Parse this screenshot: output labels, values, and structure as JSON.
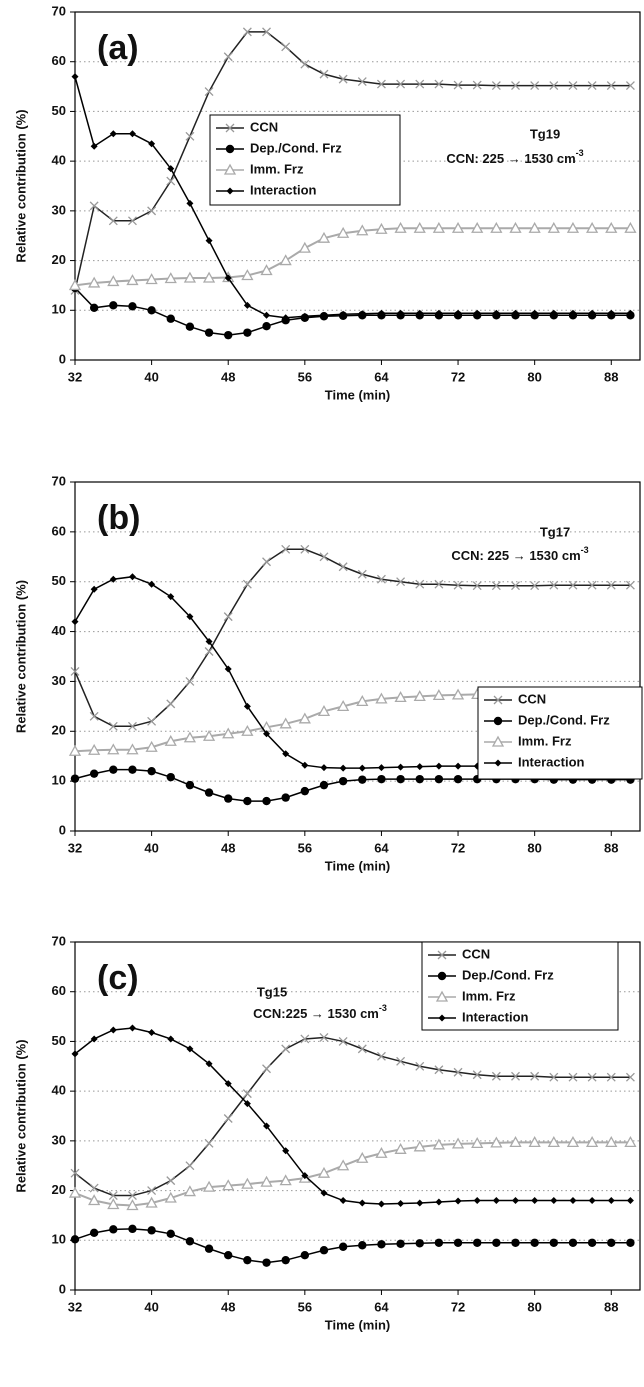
{
  "chart_data": [
    {
      "type": "line",
      "panel_label": "(a)",
      "annotation": {
        "name": "Tg19",
        "text": "CCN: 225 → 1530 cm",
        "superscript": "-3"
      },
      "xlabel": "Time (min)",
      "ylabel": "Relative contribution (%)",
      "xlim": [
        32,
        91
      ],
      "ylim": [
        0,
        70
      ],
      "xticks": [
        32,
        40,
        48,
        56,
        64,
        72,
        80,
        88
      ],
      "yticks": [
        0,
        10,
        20,
        30,
        40,
        50,
        60,
        70
      ],
      "grid": true,
      "legend": "upper-middle",
      "x": [
        32,
        34,
        36,
        38,
        40,
        42,
        44,
        46,
        48,
        50,
        52,
        54,
        56,
        58,
        60,
        62,
        64,
        66,
        68,
        70,
        72,
        74,
        76,
        78,
        80,
        82,
        84,
        86,
        88,
        90
      ],
      "series": [
        {
          "name": "CCN",
          "color": "#222222",
          "marker": "x",
          "values": [
            14,
            31,
            28,
            28,
            30,
            36,
            45,
            54,
            61,
            66,
            66,
            63,
            59.5,
            57.5,
            56.5,
            56,
            55.5,
            55.5,
            55.5,
            55.5,
            55.3,
            55.3,
            55.2,
            55.2,
            55.2,
            55.2,
            55.2,
            55.2,
            55.2,
            55.2
          ]
        },
        {
          "name": "Dep./Cond. Frz",
          "color": "#000000",
          "marker": "circle",
          "values": [
            14.5,
            10.5,
            11,
            10.8,
            10,
            8.3,
            6.7,
            5.5,
            5,
            5.5,
            6.8,
            8,
            8.5,
            8.8,
            8.9,
            9,
            9,
            9,
            9,
            9,
            9,
            9,
            9,
            9,
            9,
            9,
            9,
            9,
            9,
            9
          ]
        },
        {
          "name": "Imm. Frz",
          "color": "#aaaaaa",
          "marker": "triangle",
          "values": [
            15,
            15.5,
            15.8,
            16,
            16.2,
            16.4,
            16.5,
            16.5,
            16.6,
            17,
            18,
            20,
            22.5,
            24.5,
            25.5,
            26,
            26.3,
            26.5,
            26.5,
            26.5,
            26.5,
            26.5,
            26.5,
            26.5,
            26.5,
            26.5,
            26.5,
            26.5,
            26.5,
            26.5
          ]
        },
        {
          "name": "Interaction",
          "color": "#000000",
          "marker": "diamond",
          "values": [
            57,
            43,
            45.5,
            45.5,
            43.5,
            38.5,
            31.5,
            24,
            16.5,
            11,
            9,
            8.5,
            8.8,
            9,
            9.2,
            9.3,
            9.4,
            9.4,
            9.4,
            9.4,
            9.4,
            9.4,
            9.4,
            9.4,
            9.4,
            9.4,
            9.4,
            9.4,
            9.4,
            9.4
          ]
        }
      ]
    },
    {
      "type": "line",
      "panel_label": "(b)",
      "annotation": {
        "name": "Tg17",
        "text": "CCN: 225 → 1530 cm",
        "superscript": "-3"
      },
      "xlabel": "Time (min)",
      "ylabel": "Relative contribution (%)",
      "xlim": [
        32,
        91
      ],
      "ylim": [
        0,
        70
      ],
      "xticks": [
        32,
        40,
        48,
        56,
        64,
        72,
        80,
        88
      ],
      "yticks": [
        0,
        10,
        20,
        30,
        40,
        50,
        60,
        70
      ],
      "grid": true,
      "legend": "right",
      "x": [
        32,
        34,
        36,
        38,
        40,
        42,
        44,
        46,
        48,
        50,
        52,
        54,
        56,
        58,
        60,
        62,
        64,
        66,
        68,
        70,
        72,
        74,
        76,
        78,
        80,
        82,
        84,
        86,
        88,
        90
      ],
      "series": [
        {
          "name": "CCN",
          "color": "#222222",
          "marker": "x",
          "values": [
            32,
            23,
            21,
            21,
            22,
            25.5,
            30,
            36,
            43,
            49.5,
            54,
            56.5,
            56.5,
            55,
            53,
            51.5,
            50.5,
            50,
            49.5,
            49.5,
            49.3,
            49.2,
            49.2,
            49.2,
            49.2,
            49.3,
            49.3,
            49.3,
            49.3,
            49.3
          ]
        },
        {
          "name": "Dep./Cond. Frz",
          "color": "#000000",
          "marker": "circle",
          "values": [
            10.5,
            11.5,
            12.3,
            12.3,
            12,
            10.8,
            9.2,
            7.7,
            6.5,
            6,
            6,
            6.7,
            8,
            9.2,
            10,
            10.3,
            10.4,
            10.4,
            10.4,
            10.4,
            10.4,
            10.4,
            10.4,
            10.4,
            10.4,
            10.3,
            10.3,
            10.3,
            10.3,
            10.3
          ]
        },
        {
          "name": "Imm. Frz",
          "color": "#aaaaaa",
          "marker": "triangle",
          "values": [
            16,
            16.2,
            16.3,
            16.3,
            16.8,
            18,
            18.7,
            19,
            19.5,
            20,
            20.8,
            21.5,
            22.5,
            24,
            25,
            26,
            26.5,
            26.8,
            27,
            27.2,
            27.3,
            27.4,
            27.4,
            27.4,
            27.4,
            27.4,
            27.4,
            27.4,
            27.4,
            27.4
          ]
        },
        {
          "name": "Interaction",
          "color": "#000000",
          "marker": "diamond",
          "values": [
            42,
            48.5,
            50.5,
            51,
            49.5,
            47,
            43,
            38,
            32.5,
            25,
            19.5,
            15.5,
            13.2,
            12.7,
            12.6,
            12.6,
            12.7,
            12.8,
            12.9,
            13,
            13,
            13,
            13,
            13,
            13,
            13,
            13,
            13,
            13,
            13
          ]
        }
      ]
    },
    {
      "type": "line",
      "panel_label": "(c)",
      "annotation": {
        "name": "Tg15",
        "text": "CCN:225 → 1530 cm",
        "superscript": "-3"
      },
      "xlabel": "Time (min)",
      "ylabel": "Relative contribution (%)",
      "xlim": [
        32,
        91
      ],
      "ylim": [
        0,
        70
      ],
      "xticks": [
        32,
        40,
        48,
        56,
        64,
        72,
        80,
        88
      ],
      "yticks": [
        0,
        10,
        20,
        30,
        40,
        50,
        60,
        70
      ],
      "grid": true,
      "legend": "upper-right",
      "x": [
        32,
        34,
        36,
        38,
        40,
        42,
        44,
        46,
        48,
        50,
        52,
        54,
        56,
        58,
        60,
        62,
        64,
        66,
        68,
        70,
        72,
        74,
        76,
        78,
        80,
        82,
        84,
        86,
        88,
        90
      ],
      "series": [
        {
          "name": "CCN",
          "color": "#222222",
          "marker": "x",
          "values": [
            23.5,
            20.5,
            19,
            19,
            20,
            22,
            25,
            29.5,
            34.5,
            39.5,
            44.5,
            48.5,
            50.5,
            50.8,
            50,
            48.5,
            47,
            46,
            45,
            44.3,
            43.8,
            43.3,
            43,
            43,
            43,
            42.8,
            42.8,
            42.8,
            42.8,
            42.8
          ]
        },
        {
          "name": "Dep./Cond. Frz",
          "color": "#000000",
          "marker": "circle",
          "values": [
            10.2,
            11.5,
            12.2,
            12.3,
            12,
            11.3,
            9.8,
            8.3,
            7,
            6,
            5.5,
            6,
            7,
            8,
            8.7,
            9,
            9.2,
            9.3,
            9.4,
            9.5,
            9.5,
            9.5,
            9.5,
            9.5,
            9.5,
            9.5,
            9.5,
            9.5,
            9.5,
            9.5
          ]
        },
        {
          "name": "Imm. Frz",
          "color": "#aaaaaa",
          "marker": "triangle",
          "values": [
            19.5,
            18,
            17.2,
            17,
            17.5,
            18.5,
            19.8,
            20.7,
            21,
            21.3,
            21.7,
            22,
            22.5,
            23.5,
            25,
            26.5,
            27.5,
            28.3,
            28.8,
            29.2,
            29.4,
            29.5,
            29.6,
            29.7,
            29.7,
            29.7,
            29.7,
            29.7,
            29.7,
            29.7
          ]
        },
        {
          "name": "Interaction",
          "color": "#000000",
          "marker": "diamond",
          "values": [
            47.5,
            50.5,
            52.3,
            52.7,
            51.8,
            50.5,
            48.5,
            45.5,
            41.5,
            37.5,
            33,
            28,
            23,
            19.5,
            18,
            17.5,
            17.3,
            17.4,
            17.5,
            17.7,
            17.9,
            18,
            18,
            18,
            18,
            18,
            18,
            18,
            18,
            18
          ]
        }
      ]
    }
  ]
}
